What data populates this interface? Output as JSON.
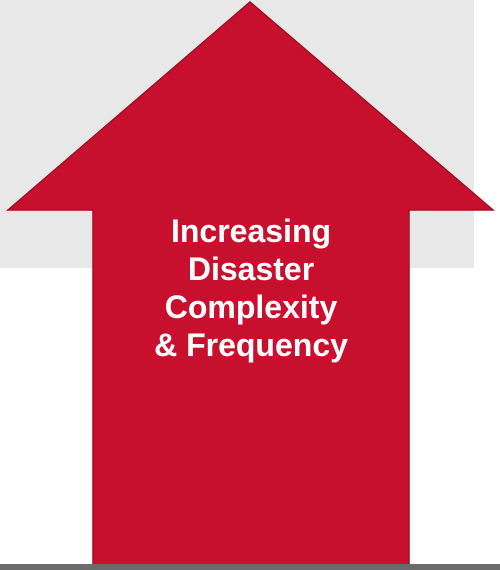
{
  "diagram": {
    "arrow_color": "#c8102e",
    "arrow_stroke": "#a40d24",
    "panel_color": "#e8e8e8",
    "label_lines": [
      "Increasing",
      "Disaster",
      "Complexity",
      "& Frequency"
    ]
  }
}
